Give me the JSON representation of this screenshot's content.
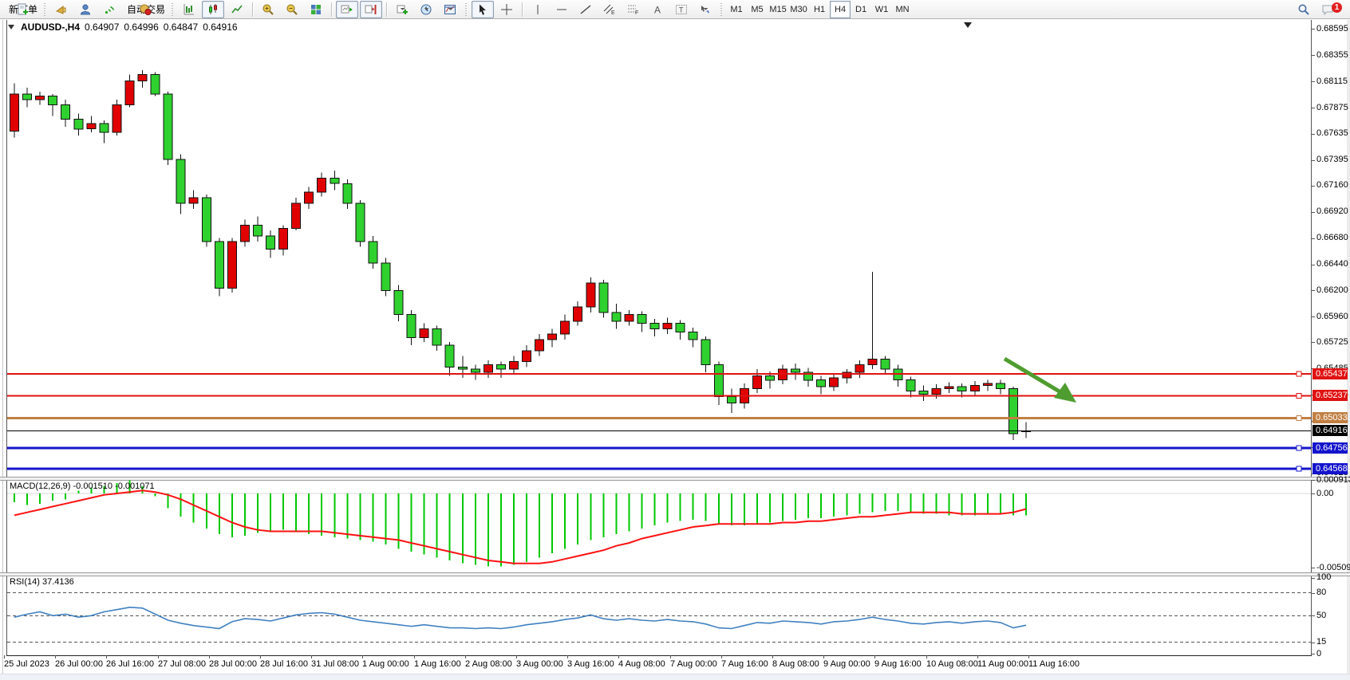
{
  "toolbar": {
    "new_order_label": "新订单",
    "auto_trading_label": "自动交易",
    "timeframes": [
      "M1",
      "M5",
      "M15",
      "M30",
      "H1",
      "H4",
      "D1",
      "W1",
      "MN"
    ],
    "active_timeframe": "H4",
    "notification_count": "1"
  },
  "chart": {
    "symbol": "AUDUSD-,H4",
    "ohlc": {
      "open": "0.64907",
      "high": "0.64996",
      "low": "0.64847",
      "close": "0.64916"
    },
    "arrow_color": "#4f9d30"
  },
  "price_axis": {
    "max": 0.68657,
    "min": 0.64531,
    "ticks": [
      "0.68595",
      "0.68355",
      "0.68115",
      "0.67875",
      "0.67635",
      "0.67395",
      "0.67160",
      "0.66920",
      "0.66680",
      "0.66440",
      "0.66200",
      "0.65960",
      "0.65725",
      "0.65485",
      "0.65245",
      "0.65005",
      "0.64765",
      "0.64525"
    ]
  },
  "levels": [
    {
      "label": "0.65437",
      "value": 0.65437,
      "color": "#e01212",
      "width": 2,
      "handle": true
    },
    {
      "label": "0.65237",
      "value": 0.65237,
      "color": "#e01212",
      "width": 2,
      "handle": true
    },
    {
      "label": "0.65033",
      "value": 0.65033,
      "color": "#c17f42",
      "width": 3,
      "handle": true
    },
    {
      "label": "0.64916",
      "value": 0.64916,
      "color": "#000000",
      "width": 1,
      "handle": false
    },
    {
      "label": "0.64756",
      "value": 0.64756,
      "color": "#1414cc",
      "width": 3,
      "handle": true
    },
    {
      "label": "0.64568",
      "value": 0.64568,
      "color": "#1414cc",
      "width": 3,
      "handle": true
    }
  ],
  "time_axis": [
    "25 Jul 2023",
    "26 Jul 00:00",
    "26 Jul 16:00",
    "27 Jul 08:00",
    "28 Jul 00:00",
    "28 Jul 16:00",
    "31 Jul 08:00",
    "1 Aug 00:00",
    "1 Aug 16:00",
    "2 Aug 08:00",
    "3 Aug 00:00",
    "3 Aug 16:00",
    "4 Aug 08:00",
    "7 Aug 00:00",
    "7 Aug 16:00",
    "8 Aug 08:00",
    "9 Aug 00:00",
    "9 Aug 16:00",
    "10 Aug 08:00",
    "11 Aug 00:00",
    "11 Aug 16:00"
  ],
  "macd": {
    "name": "MACD(12,26,9)",
    "values": "-0.001510 -0.001071",
    "axis": [
      "0.000913",
      "0.00",
      "-0.005093"
    ]
  },
  "rsi": {
    "name": "RSI(14)",
    "value": "37.4136",
    "axis": [
      "100",
      "80",
      "50",
      "15",
      "0"
    ],
    "levels": [
      80,
      50,
      15
    ]
  },
  "chart_data": {
    "type": "candlestick",
    "symbol": "AUDUSD",
    "period": "H4",
    "up_color": "#e00000",
    "down_color": "#2fd12f",
    "macd_color": "#00c800",
    "signal_color": "#ff1212",
    "rsi_color": "#4080c0",
    "candles": [
      [
        0.6766,
        0.681,
        0.676,
        0.68
      ],
      [
        0.68,
        0.6806,
        0.6788,
        0.6795
      ],
      [
        0.6795,
        0.6802,
        0.679,
        0.6798
      ],
      [
        0.6798,
        0.68,
        0.678,
        0.679
      ],
      [
        0.679,
        0.6795,
        0.677,
        0.6777
      ],
      [
        0.6777,
        0.6782,
        0.6762,
        0.6768
      ],
      [
        0.6768,
        0.678,
        0.6765,
        0.6773
      ],
      [
        0.6773,
        0.6776,
        0.6755,
        0.6765
      ],
      [
        0.6765,
        0.6795,
        0.6762,
        0.679
      ],
      [
        0.679,
        0.6818,
        0.6788,
        0.6812
      ],
      [
        0.6812,
        0.6822,
        0.6806,
        0.6818
      ],
      [
        0.6818,
        0.682,
        0.6798,
        0.68
      ],
      [
        0.68,
        0.6802,
        0.6735,
        0.674
      ],
      [
        0.674,
        0.6745,
        0.669,
        0.67
      ],
      [
        0.67,
        0.6712,
        0.6695,
        0.6705
      ],
      [
        0.6705,
        0.6708,
        0.666,
        0.6665
      ],
      [
        0.6665,
        0.6668,
        0.6615,
        0.6622
      ],
      [
        0.6622,
        0.6668,
        0.6618,
        0.6665
      ],
      [
        0.6665,
        0.6685,
        0.666,
        0.668
      ],
      [
        0.668,
        0.6688,
        0.6665,
        0.667
      ],
      [
        0.667,
        0.6675,
        0.665,
        0.6658
      ],
      [
        0.6658,
        0.668,
        0.6652,
        0.6677
      ],
      [
        0.6677,
        0.6705,
        0.6675,
        0.67
      ],
      [
        0.67,
        0.6715,
        0.6695,
        0.671
      ],
      [
        0.671,
        0.6728,
        0.6706,
        0.6723
      ],
      [
        0.6723,
        0.673,
        0.6712,
        0.6718
      ],
      [
        0.6718,
        0.6722,
        0.6695,
        0.67
      ],
      [
        0.67,
        0.6703,
        0.666,
        0.6665
      ],
      [
        0.6665,
        0.667,
        0.664,
        0.6645
      ],
      [
        0.6645,
        0.665,
        0.6615,
        0.662
      ],
      [
        0.662,
        0.6625,
        0.6592,
        0.6598
      ],
      [
        0.6598,
        0.6602,
        0.657,
        0.6577
      ],
      [
        0.6577,
        0.659,
        0.6573,
        0.6585
      ],
      [
        0.6585,
        0.6588,
        0.6565,
        0.657
      ],
      [
        0.657,
        0.6573,
        0.6542,
        0.655
      ],
      [
        0.655,
        0.656,
        0.654,
        0.6548
      ],
      [
        0.6548,
        0.6552,
        0.6538,
        0.6545
      ],
      [
        0.6545,
        0.6556,
        0.654,
        0.6552
      ],
      [
        0.6552,
        0.6555,
        0.654,
        0.6548
      ],
      [
        0.6548,
        0.656,
        0.6544,
        0.6555
      ],
      [
        0.6555,
        0.657,
        0.655,
        0.6565
      ],
      [
        0.6565,
        0.658,
        0.656,
        0.6575
      ],
      [
        0.6575,
        0.6585,
        0.6568,
        0.658
      ],
      [
        0.658,
        0.6598,
        0.6575,
        0.6592
      ],
      [
        0.6592,
        0.661,
        0.6588,
        0.6605
      ],
      [
        0.6605,
        0.6632,
        0.66,
        0.6627
      ],
      [
        0.6627,
        0.663,
        0.6595,
        0.66
      ],
      [
        0.66,
        0.6608,
        0.6585,
        0.6592
      ],
      [
        0.6592,
        0.6602,
        0.6588,
        0.6598
      ],
      [
        0.6598,
        0.6601,
        0.6582,
        0.659
      ],
      [
        0.659,
        0.6594,
        0.6578,
        0.6585
      ],
      [
        0.6585,
        0.6595,
        0.658,
        0.659
      ],
      [
        0.659,
        0.6593,
        0.6575,
        0.6582
      ],
      [
        0.6582,
        0.6586,
        0.6568,
        0.6575
      ],
      [
        0.6575,
        0.6578,
        0.6545,
        0.6552
      ],
      [
        0.6552,
        0.6555,
        0.6515,
        0.6523
      ],
      [
        0.6523,
        0.653,
        0.6508,
        0.6517
      ],
      [
        0.6517,
        0.6535,
        0.6512,
        0.653
      ],
      [
        0.653,
        0.6548,
        0.6526,
        0.6542
      ],
      [
        0.6542,
        0.6546,
        0.653,
        0.6538
      ],
      [
        0.6538,
        0.6552,
        0.6534,
        0.6548
      ],
      [
        0.6548,
        0.6553,
        0.6538,
        0.6545
      ],
      [
        0.6545,
        0.6549,
        0.6532,
        0.6538
      ],
      [
        0.6538,
        0.6542,
        0.6525,
        0.6532
      ],
      [
        0.6532,
        0.6544,
        0.6528,
        0.654
      ],
      [
        0.654,
        0.6548,
        0.6535,
        0.6545
      ],
      [
        0.6545,
        0.6556,
        0.654,
        0.6552
      ],
      [
        0.6552,
        0.6637,
        0.6548,
        0.6557
      ],
      [
        0.6557,
        0.656,
        0.6544,
        0.6548
      ],
      [
        0.6548,
        0.6552,
        0.6532,
        0.6538
      ],
      [
        0.6538,
        0.6541,
        0.6522,
        0.6528
      ],
      [
        0.6528,
        0.6533,
        0.6519,
        0.6525
      ],
      [
        0.6525,
        0.6534,
        0.6521,
        0.653
      ],
      [
        0.653,
        0.6536,
        0.6526,
        0.6532
      ],
      [
        0.6532,
        0.6535,
        0.6522,
        0.6528
      ],
      [
        0.6528,
        0.6537,
        0.6524,
        0.6533
      ],
      [
        0.6533,
        0.6538,
        0.6528,
        0.6535
      ],
      [
        0.6535,
        0.6538,
        0.6525,
        0.653
      ],
      [
        0.653,
        0.6532,
        0.6483,
        0.6489
      ],
      [
        0.64907,
        0.64996,
        0.64847,
        0.64916
      ]
    ],
    "macd_histogram": [
      -0.0006,
      -0.0008,
      -0.0007,
      -0.0005,
      -0.0004,
      0.0002,
      0.0004,
      0.0005,
      0.0007,
      0.00091,
      0.0005,
      -0.0002,
      -0.001,
      -0.0016,
      -0.002,
      -0.0024,
      -0.0028,
      -0.003,
      -0.0029,
      -0.0027,
      -0.0026,
      -0.0025,
      -0.0026,
      -0.0028,
      -0.0029,
      -0.003,
      -0.0031,
      -0.0032,
      -0.0033,
      -0.0035,
      -0.0038,
      -0.004,
      -0.0042,
      -0.0044,
      -0.0046,
      -0.0048,
      -0.0049,
      -0.005,
      -0.005,
      -0.0049,
      -0.0047,
      -0.0044,
      -0.0041,
      -0.0038,
      -0.0035,
      -0.0032,
      -0.003,
      -0.0028,
      -0.0026,
      -0.0024,
      -0.0022,
      -0.002,
      -0.0019,
      -0.0018,
      -0.0019,
      -0.0021,
      -0.0022,
      -0.0022,
      -0.0021,
      -0.002,
      -0.0019,
      -0.0018,
      -0.0017,
      -0.0017,
      -0.0016,
      -0.0015,
      -0.0014,
      -0.0013,
      -0.0012,
      -0.0012,
      -0.0013,
      -0.0014,
      -0.0014,
      -0.0015,
      -0.0015,
      -0.0015,
      -0.0014,
      -0.0014,
      -0.0015,
      -0.00151
    ],
    "macd_signal": [
      -0.0015,
      -0.0013,
      -0.0011,
      -0.0009,
      -0.0007,
      -0.0005,
      -0.0003,
      -0.0001,
      0.0,
      0.0001,
      0.0002,
      0.0001,
      -0.0001,
      -0.0004,
      -0.0008,
      -0.0012,
      -0.0016,
      -0.002,
      -0.0023,
      -0.0025,
      -0.0026,
      -0.0026,
      -0.0026,
      -0.0026,
      -0.0026,
      -0.0027,
      -0.0028,
      -0.0029,
      -0.003,
      -0.0031,
      -0.0032,
      -0.0034,
      -0.0036,
      -0.0038,
      -0.004,
      -0.0042,
      -0.0044,
      -0.0046,
      -0.0047,
      -0.0048,
      -0.0048,
      -0.0048,
      -0.0047,
      -0.0045,
      -0.0043,
      -0.0041,
      -0.0039,
      -0.0036,
      -0.0034,
      -0.0031,
      -0.0029,
      -0.0027,
      -0.0025,
      -0.0023,
      -0.0022,
      -0.0021,
      -0.0021,
      -0.0021,
      -0.0021,
      -0.0021,
      -0.002,
      -0.002,
      -0.0019,
      -0.0019,
      -0.0018,
      -0.0017,
      -0.0016,
      -0.0016,
      -0.0015,
      -0.0014,
      -0.0013,
      -0.0013,
      -0.0013,
      -0.0013,
      -0.0014,
      -0.0014,
      -0.0014,
      -0.0014,
      -0.0013,
      -0.00107
    ],
    "rsi": [
      48,
      52,
      55,
      50,
      52,
      48,
      50,
      55,
      58,
      61,
      60,
      52,
      44,
      40,
      37,
      35,
      33,
      42,
      46,
      45,
      43,
      47,
      51,
      53,
      54,
      52,
      48,
      44,
      42,
      40,
      38,
      36,
      38,
      36,
      34,
      34,
      33,
      34,
      33,
      35,
      38,
      40,
      42,
      45,
      47,
      51,
      46,
      44,
      46,
      44,
      43,
      45,
      43,
      42,
      39,
      34,
      33,
      37,
      41,
      40,
      43,
      42,
      41,
      39,
      42,
      43,
      45,
      48,
      45,
      43,
      40,
      39,
      41,
      42,
      40,
      42,
      43,
      41,
      34,
      37.4
    ]
  }
}
